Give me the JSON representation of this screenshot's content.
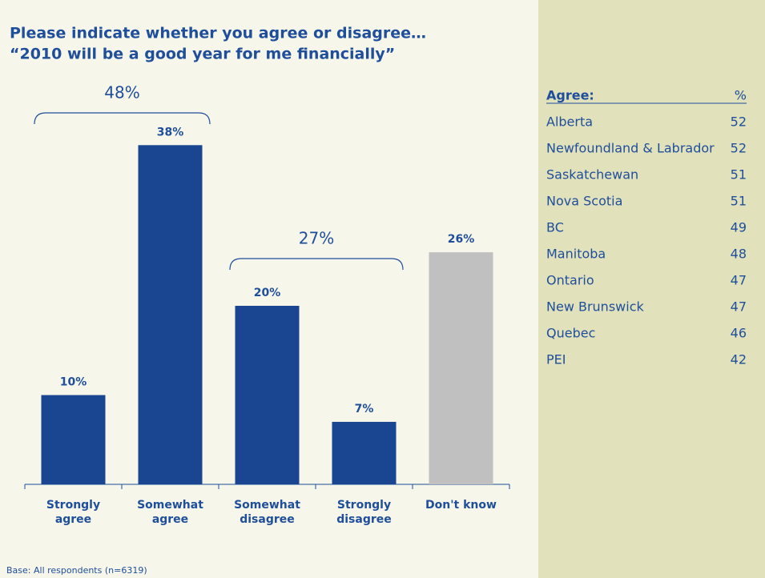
{
  "chart_data": {
    "type": "bar",
    "title": "Please indicate whether you agree or disagree…",
    "subtitle": "“2010 will be a good year for me financially”",
    "categories": [
      "Strongly agree",
      "Somewhat agree",
      "Somewhat disagree",
      "Strongly disagree",
      "Don't know"
    ],
    "values": [
      10,
      38,
      20,
      7,
      26
    ],
    "value_labels": [
      "10%",
      "38%",
      "20%",
      "7%",
      "26%"
    ],
    "colors": [
      "#1a4590",
      "#1a4590",
      "#1a4590",
      "#1a4590",
      "#c0c0c0"
    ],
    "annotations": [
      {
        "value": 48,
        "label": "48%"
      },
      {
        "value": 27,
        "label": "27%"
      }
    ],
    "footnote": "Base: All respondents (n=6319)"
  },
  "table": {
    "header": [
      "Agree:",
      "%"
    ],
    "rows": [
      [
        "Alberta",
        52
      ],
      [
        "Newfoundland & Labrador",
        52
      ],
      [
        "Saskatchewan",
        51
      ],
      [
        "Nova Scotia",
        51
      ],
      [
        "BC",
        49
      ],
      [
        "Manitoba",
        48
      ],
      [
        "Ontario",
        47
      ],
      [
        "New Brunswick",
        47
      ],
      [
        "Quebec",
        46
      ],
      [
        "PEI",
        42
      ]
    ]
  }
}
